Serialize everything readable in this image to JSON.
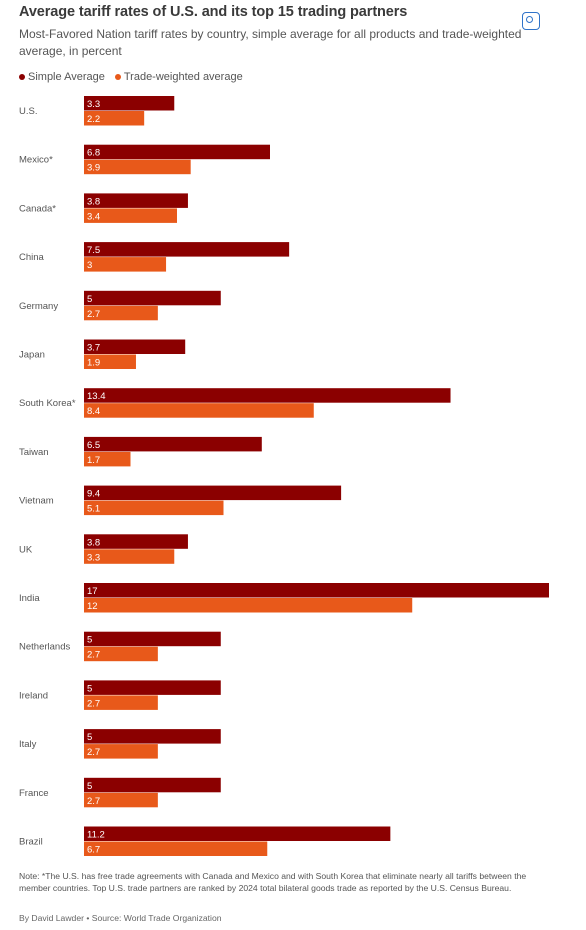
{
  "header": {
    "title": "Average tariff rates of U.S. and its top 15 trading partners",
    "subtitle": "Most-Favored Nation tariff rates by country, simple average for all products and trade-weighted average, in percent"
  },
  "expand_icon": "expand-icon",
  "footer": {
    "note": "Note: *The U.S. has free trade agreements with Canada and Mexico and with South Korea that eliminate nearly all tariffs between the member countries. Top U.S. trade partners are ranked by 2024 total bilateral goods trade as reported by the U.S. Census Bureau.",
    "byline": "By David Lawder • Source: World Trade Organization"
  },
  "colors": {
    "simple": "#8b0000",
    "weighted": "#e8591a"
  },
  "chart_data": {
    "type": "bar",
    "orientation": "horizontal",
    "title": "Average tariff rates of U.S. and its top 15 trading partners",
    "subtitle": "Most-Favored Nation tariff rates by country, simple average for all products and trade-weighted average, in percent",
    "categories": [
      "U.S.",
      "Mexico*",
      "Canada*",
      "China",
      "Germany",
      "Japan",
      "South Korea*",
      "Taiwan",
      "Vietnam",
      "UK",
      "India",
      "Netherlands",
      "Ireland",
      "Italy",
      "France",
      "Brazil"
    ],
    "series": [
      {
        "name": "Simple Average",
        "color": "#8b0000",
        "values": [
          3.3,
          6.8,
          3.8,
          7.5,
          5,
          3.7,
          13.4,
          6.5,
          9.4,
          3.8,
          17,
          5,
          5,
          5,
          5,
          11.2
        ]
      },
      {
        "name": "Trade-weighted average",
        "color": "#e8591a",
        "values": [
          2.2,
          3.9,
          3.4,
          3,
          2.7,
          1.9,
          8.4,
          1.7,
          5.1,
          3.3,
          12,
          2.7,
          2.7,
          2.7,
          2.7,
          6.7
        ]
      }
    ],
    "xlim": [
      0,
      17
    ],
    "legend": "top-left",
    "grid": false
  }
}
